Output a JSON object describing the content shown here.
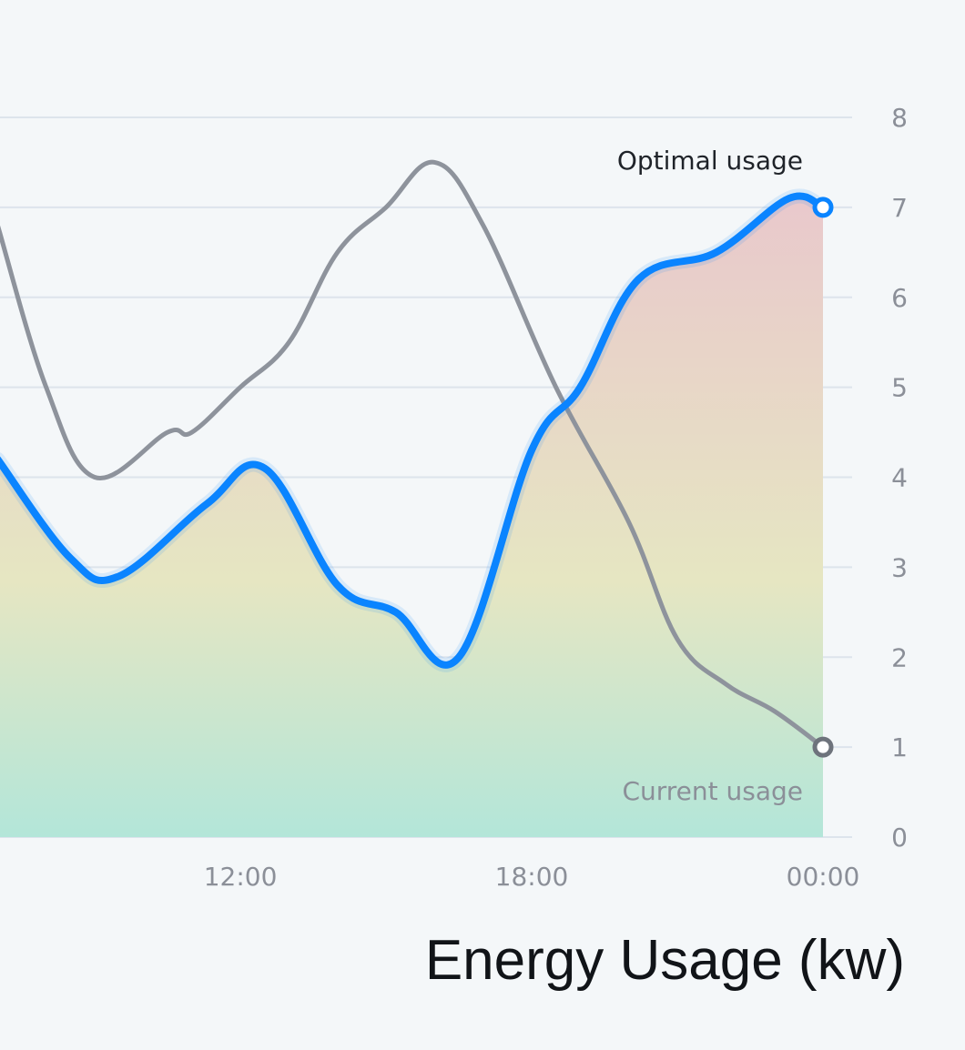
{
  "chart_data": {
    "type": "line",
    "title": "Energy Usage (kw)",
    "xlabel": "",
    "ylabel": "",
    "ylim": [
      0,
      8
    ],
    "yticks": [
      0,
      1,
      2,
      3,
      4,
      5,
      6,
      7,
      8
    ],
    "xticks": [
      {
        "hour": 12,
        "label": "12:00"
      },
      {
        "hour": 18,
        "label": "18:00"
      },
      {
        "hour": 24,
        "label": "00:00"
      }
    ],
    "grid": true,
    "series": [
      {
        "name": "Optimal usage",
        "color": "#0a84ff",
        "filled": true,
        "x": [
          7,
          8.5,
          9.5,
          11.3,
          12.5,
          14,
          15.2,
          16.5,
          18,
          19,
          20.2,
          21.8,
          23.3,
          24
        ],
        "y": [
          4.2,
          3.1,
          2.9,
          3.7,
          4.1,
          2.8,
          2.5,
          2.0,
          4.3,
          5.0,
          6.2,
          6.5,
          7.1,
          7.0
        ]
      },
      {
        "name": "Current usage",
        "color": "#8e939c",
        "filled": false,
        "x": [
          7,
          8,
          9,
          10.5,
          11,
          12,
          13,
          14,
          15,
          16,
          17,
          18.5,
          20,
          21,
          22,
          23,
          24
        ],
        "y": [
          6.8,
          5.0,
          4.0,
          4.5,
          4.5,
          5.0,
          5.5,
          6.5,
          7.0,
          7.5,
          6.8,
          5.0,
          3.5,
          2.2,
          1.7,
          1.4,
          1.0
        ]
      }
    ],
    "annotations": [
      {
        "text": "Optimal usage",
        "series": 0
      },
      {
        "text": "Current usage",
        "series": 1
      }
    ],
    "fill_gradient": [
      "#e9c8cc",
      "#e6e6c2",
      "#b3e6d9"
    ]
  }
}
